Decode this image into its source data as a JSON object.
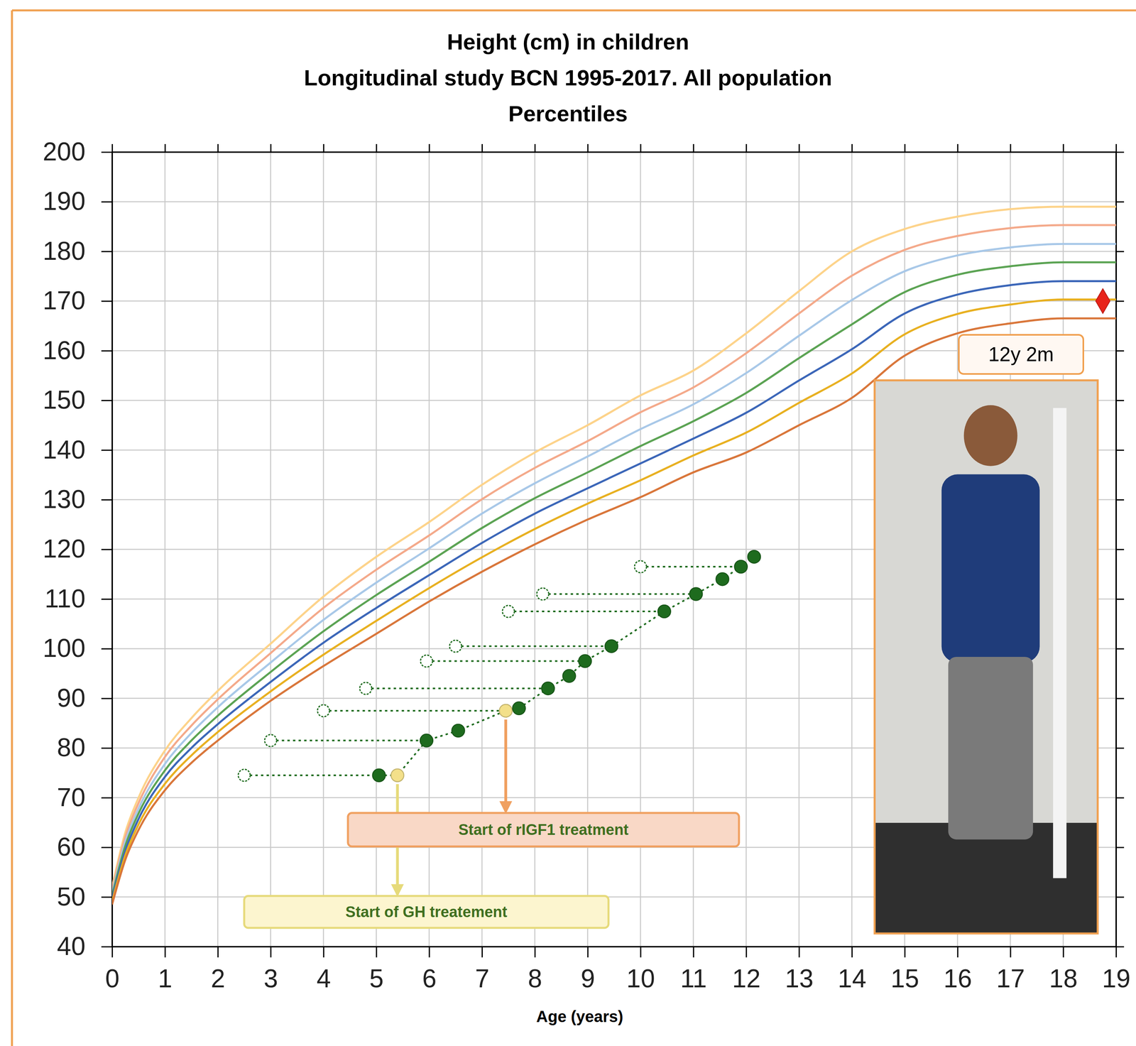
{
  "chart_data": {
    "type": "line",
    "title": [
      "Height (cm) in children",
      "Longitudinal study BCN 1995-2017. All population",
      "Percentiles"
    ],
    "x_label": "Age (years)",
    "x": [
      0,
      0.25,
      0.5,
      1,
      1.5,
      2,
      3,
      4,
      5,
      6,
      7,
      8,
      9,
      10,
      11,
      12,
      13,
      14,
      15,
      16,
      17,
      18,
      19
    ],
    "xlim": [
      0,
      19
    ],
    "xticks": [
      0,
      1,
      2,
      3,
      4,
      5,
      6,
      7,
      8,
      9,
      10,
      11,
      12,
      13,
      14,
      15,
      16,
      17,
      18,
      19
    ],
    "ylim": [
      40,
      200
    ],
    "yticks": [
      40,
      50,
      60,
      70,
      80,
      90,
      100,
      110,
      120,
      130,
      140,
      150,
      160,
      170,
      180,
      190,
      200
    ],
    "grid": true,
    "series": [
      {
        "color": "#fdd38a",
        "line_style": "solid",
        "values": [
          52,
          63,
          70,
          79.5,
          86,
          91.5,
          101,
          110.5,
          118.5,
          125.5,
          133,
          139.5,
          145,
          151,
          156,
          163.5,
          172,
          180,
          184.5,
          187,
          188.5,
          189,
          189
        ]
      },
      {
        "color": "#f4a98a",
        "line_style": "solid",
        "values": [
          51.4,
          62.1,
          68.9,
          78.2,
          84.5,
          89.8,
          99.1,
          108.2,
          115.9,
          122.8,
          130.1,
          136.4,
          141.8,
          147.6,
          152.6,
          159.5,
          167.5,
          175.1,
          180.3,
          183.1,
          184.7,
          185.3,
          185.3
        ]
      },
      {
        "color": "#a8c8e8",
        "line_style": "solid",
        "values": [
          50.8,
          61.2,
          67.8,
          76.8,
          83,
          88.2,
          97.2,
          105.8,
          113.3,
          120.2,
          127.2,
          133.3,
          138.7,
          144.2,
          149.2,
          155.5,
          163,
          170.2,
          176,
          179.2,
          180.8,
          181.5,
          181.5
        ]
      },
      {
        "color": "#5ba353",
        "line_style": "solid",
        "values": [
          50.3,
          60.3,
          66.8,
          75.5,
          81.5,
          86.5,
          95.3,
          103.5,
          110.8,
          117.5,
          124.3,
          130.3,
          135.5,
          140.8,
          145.8,
          151.5,
          158.5,
          165.3,
          171.8,
          175.3,
          177,
          177.8,
          177.8
        ]
      },
      {
        "color": "#3b66b8",
        "line_style": "solid",
        "values": [
          49.7,
          59.3,
          65.7,
          74.2,
          80,
          84.8,
          93.3,
          101.2,
          108.2,
          114.8,
          121.3,
          127.2,
          132.3,
          137.3,
          142.3,
          147.5,
          154,
          160.3,
          167.5,
          171.3,
          173.2,
          174,
          174
        ]
      },
      {
        "color": "#e8b020",
        "line_style": "solid",
        "values": [
          49.1,
          58.4,
          64.6,
          72.8,
          78.5,
          83.2,
          91.4,
          98.8,
          105.6,
          112.2,
          118.4,
          124.1,
          129.2,
          133.9,
          138.9,
          143.5,
          149.5,
          155.4,
          163.3,
          167.4,
          169.3,
          170.3,
          170.3
        ]
      },
      {
        "color": "#d9763a",
        "line_style": "solid",
        "values": [
          48.5,
          57.5,
          63.5,
          71.5,
          77,
          81.5,
          89.5,
          96.5,
          103,
          109.5,
          115.5,
          121,
          126,
          130.5,
          135.5,
          139.5,
          145,
          150.5,
          159,
          163.5,
          165.5,
          166.5,
          166.5
        ]
      },
      {
        "color": "#1e6b1e",
        "line_style": "dotted",
        "marker": "circle",
        "x": [
          5.05,
          5.4,
          5.95,
          6.55,
          7.45,
          7.7,
          8.25,
          8.65,
          8.95,
          9.45,
          10.45,
          11.05,
          11.55,
          11.9,
          12.15
        ],
        "values": [
          74.5,
          74.5,
          81.5,
          83.5,
          87.5,
          88,
          92,
          94.5,
          97.5,
          100.5,
          107.5,
          111,
          114,
          116.5,
          118.5
        ],
        "height_age": [
          2.5,
          null,
          3,
          null,
          4,
          null,
          4.8,
          null,
          5.95,
          6.5,
          7.5,
          8.15,
          null,
          10,
          null
        ],
        "colors": [
          "#1e6b1e",
          "#f3e08a",
          "#1e6b1e",
          "#1e6b1e",
          "#f3e08a",
          "#1e6b1e",
          "#1e6b1e",
          "#1e6b1e",
          "#1e6b1e",
          "#1e6b1e",
          "#1e6b1e",
          "#1e6b1e",
          "#1e6b1e",
          "#1e6b1e",
          "#1e6b1e"
        ]
      },
      {
        "type": "scatter",
        "color": "#e8231a",
        "marker": "diamond",
        "x": [
          18.75
        ],
        "values": [
          170
        ]
      }
    ],
    "annotations": [
      {
        "text": "Start of rIGF1 treatment",
        "x": 7.45,
        "y": 87.5
      },
      {
        "text": "Start of GH treatement",
        "x": 5.4,
        "y": 74.5
      },
      {
        "text": "12y 2m"
      }
    ]
  }
}
